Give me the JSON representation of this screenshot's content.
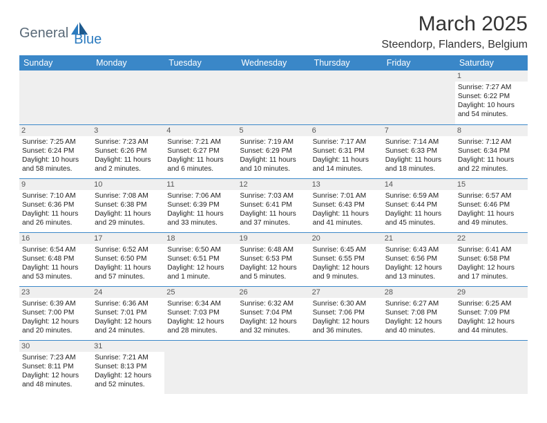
{
  "logo": {
    "text1": "General",
    "text2": "Blue"
  },
  "title": "March 2025",
  "location": "Steendorp, Flanders, Belgium",
  "colors": {
    "header_bg": "#3a87c8",
    "header_fg": "#ffffff",
    "border": "#3a87c8",
    "empty_bg": "#efefef",
    "logo_gray": "#5a6a78",
    "logo_blue": "#2c7bbf"
  },
  "days_of_week": [
    "Sunday",
    "Monday",
    "Tuesday",
    "Wednesday",
    "Thursday",
    "Friday",
    "Saturday"
  ],
  "weeks": [
    [
      null,
      null,
      null,
      null,
      null,
      null,
      {
        "n": "1",
        "sunrise": "Sunrise: 7:27 AM",
        "sunset": "Sunset: 6:22 PM",
        "daylight": "Daylight: 10 hours and 54 minutes."
      }
    ],
    [
      {
        "n": "2",
        "sunrise": "Sunrise: 7:25 AM",
        "sunset": "Sunset: 6:24 PM",
        "daylight": "Daylight: 10 hours and 58 minutes."
      },
      {
        "n": "3",
        "sunrise": "Sunrise: 7:23 AM",
        "sunset": "Sunset: 6:26 PM",
        "daylight": "Daylight: 11 hours and 2 minutes."
      },
      {
        "n": "4",
        "sunrise": "Sunrise: 7:21 AM",
        "sunset": "Sunset: 6:27 PM",
        "daylight": "Daylight: 11 hours and 6 minutes."
      },
      {
        "n": "5",
        "sunrise": "Sunrise: 7:19 AM",
        "sunset": "Sunset: 6:29 PM",
        "daylight": "Daylight: 11 hours and 10 minutes."
      },
      {
        "n": "6",
        "sunrise": "Sunrise: 7:17 AM",
        "sunset": "Sunset: 6:31 PM",
        "daylight": "Daylight: 11 hours and 14 minutes."
      },
      {
        "n": "7",
        "sunrise": "Sunrise: 7:14 AM",
        "sunset": "Sunset: 6:33 PM",
        "daylight": "Daylight: 11 hours and 18 minutes."
      },
      {
        "n": "8",
        "sunrise": "Sunrise: 7:12 AM",
        "sunset": "Sunset: 6:34 PM",
        "daylight": "Daylight: 11 hours and 22 minutes."
      }
    ],
    [
      {
        "n": "9",
        "sunrise": "Sunrise: 7:10 AM",
        "sunset": "Sunset: 6:36 PM",
        "daylight": "Daylight: 11 hours and 26 minutes."
      },
      {
        "n": "10",
        "sunrise": "Sunrise: 7:08 AM",
        "sunset": "Sunset: 6:38 PM",
        "daylight": "Daylight: 11 hours and 29 minutes."
      },
      {
        "n": "11",
        "sunrise": "Sunrise: 7:06 AM",
        "sunset": "Sunset: 6:39 PM",
        "daylight": "Daylight: 11 hours and 33 minutes."
      },
      {
        "n": "12",
        "sunrise": "Sunrise: 7:03 AM",
        "sunset": "Sunset: 6:41 PM",
        "daylight": "Daylight: 11 hours and 37 minutes."
      },
      {
        "n": "13",
        "sunrise": "Sunrise: 7:01 AM",
        "sunset": "Sunset: 6:43 PM",
        "daylight": "Daylight: 11 hours and 41 minutes."
      },
      {
        "n": "14",
        "sunrise": "Sunrise: 6:59 AM",
        "sunset": "Sunset: 6:44 PM",
        "daylight": "Daylight: 11 hours and 45 minutes."
      },
      {
        "n": "15",
        "sunrise": "Sunrise: 6:57 AM",
        "sunset": "Sunset: 6:46 PM",
        "daylight": "Daylight: 11 hours and 49 minutes."
      }
    ],
    [
      {
        "n": "16",
        "sunrise": "Sunrise: 6:54 AM",
        "sunset": "Sunset: 6:48 PM",
        "daylight": "Daylight: 11 hours and 53 minutes."
      },
      {
        "n": "17",
        "sunrise": "Sunrise: 6:52 AM",
        "sunset": "Sunset: 6:50 PM",
        "daylight": "Daylight: 11 hours and 57 minutes."
      },
      {
        "n": "18",
        "sunrise": "Sunrise: 6:50 AM",
        "sunset": "Sunset: 6:51 PM",
        "daylight": "Daylight: 12 hours and 1 minute."
      },
      {
        "n": "19",
        "sunrise": "Sunrise: 6:48 AM",
        "sunset": "Sunset: 6:53 PM",
        "daylight": "Daylight: 12 hours and 5 minutes."
      },
      {
        "n": "20",
        "sunrise": "Sunrise: 6:45 AM",
        "sunset": "Sunset: 6:55 PM",
        "daylight": "Daylight: 12 hours and 9 minutes."
      },
      {
        "n": "21",
        "sunrise": "Sunrise: 6:43 AM",
        "sunset": "Sunset: 6:56 PM",
        "daylight": "Daylight: 12 hours and 13 minutes."
      },
      {
        "n": "22",
        "sunrise": "Sunrise: 6:41 AM",
        "sunset": "Sunset: 6:58 PM",
        "daylight": "Daylight: 12 hours and 17 minutes."
      }
    ],
    [
      {
        "n": "23",
        "sunrise": "Sunrise: 6:39 AM",
        "sunset": "Sunset: 7:00 PM",
        "daylight": "Daylight: 12 hours and 20 minutes."
      },
      {
        "n": "24",
        "sunrise": "Sunrise: 6:36 AM",
        "sunset": "Sunset: 7:01 PM",
        "daylight": "Daylight: 12 hours and 24 minutes."
      },
      {
        "n": "25",
        "sunrise": "Sunrise: 6:34 AM",
        "sunset": "Sunset: 7:03 PM",
        "daylight": "Daylight: 12 hours and 28 minutes."
      },
      {
        "n": "26",
        "sunrise": "Sunrise: 6:32 AM",
        "sunset": "Sunset: 7:04 PM",
        "daylight": "Daylight: 12 hours and 32 minutes."
      },
      {
        "n": "27",
        "sunrise": "Sunrise: 6:30 AM",
        "sunset": "Sunset: 7:06 PM",
        "daylight": "Daylight: 12 hours and 36 minutes."
      },
      {
        "n": "28",
        "sunrise": "Sunrise: 6:27 AM",
        "sunset": "Sunset: 7:08 PM",
        "daylight": "Daylight: 12 hours and 40 minutes."
      },
      {
        "n": "29",
        "sunrise": "Sunrise: 6:25 AM",
        "sunset": "Sunset: 7:09 PM",
        "daylight": "Daylight: 12 hours and 44 minutes."
      }
    ],
    [
      {
        "n": "30",
        "sunrise": "Sunrise: 7:23 AM",
        "sunset": "Sunset: 8:11 PM",
        "daylight": "Daylight: 12 hours and 48 minutes."
      },
      {
        "n": "31",
        "sunrise": "Sunrise: 7:21 AM",
        "sunset": "Sunset: 8:13 PM",
        "daylight": "Daylight: 12 hours and 52 minutes."
      },
      null,
      null,
      null,
      null,
      null
    ]
  ]
}
